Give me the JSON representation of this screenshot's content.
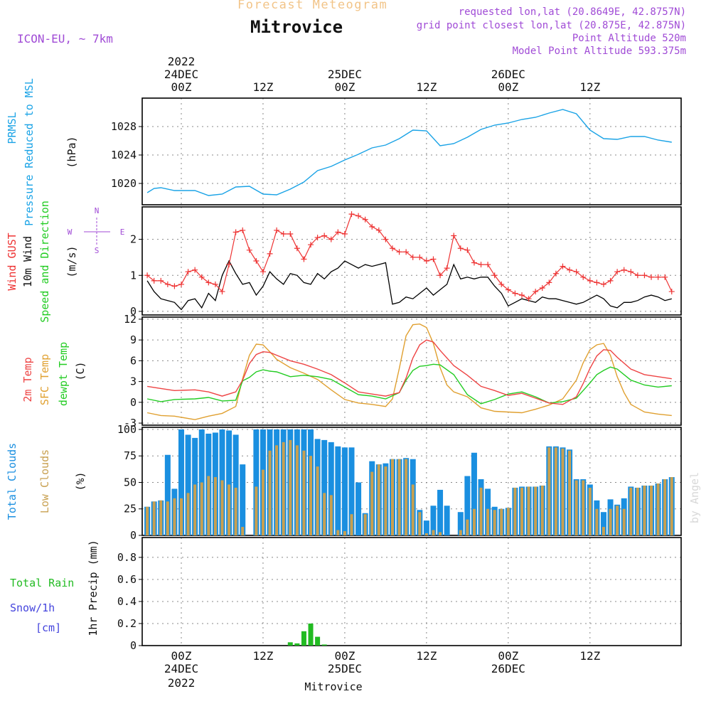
{
  "header": {
    "subtitle": "Forecast Meteogram",
    "title": "Mitrovice",
    "model": "ICON-EU, ~ 7km",
    "requested": "requested lon,lat (20.8649E, 42.8757N)",
    "grid_point": "grid point closest lon,lat (20.875E, 42.875N)",
    "point_altitude": "Point Altitude 520m",
    "model_altitude": "Model Point Altitude 593.375m",
    "bottom_label": "Mitrovice",
    "watermark": "by Angel"
  },
  "time_axis": {
    "top_year": "2022",
    "top_dates": [
      "24DEC",
      "25DEC",
      "26DEC"
    ],
    "hour_labels": [
      "00Z",
      "12Z",
      "00Z",
      "12Z",
      "00Z",
      "12Z"
    ],
    "bottom_dates": [
      "24DEC",
      "25DEC",
      "26DEC"
    ],
    "bottom_year": "2022"
  },
  "compass": {
    "n": "N",
    "s": "S",
    "w": "W",
    "e": "E"
  },
  "colors": {
    "pressure": "#1aa3e6",
    "gust": "#ee3333",
    "wind": "#000000",
    "temp": "#ee4444",
    "sfc": "#e0a030",
    "dewpt": "#22cc22",
    "cloud_total": "#1a8fe0",
    "cloud_low": "#c8a050",
    "rain": "#22bb22",
    "snow": "#4444dd",
    "header_orange": "#f2c488",
    "header_purple": "#a04bd6"
  },
  "chart_data": [
    {
      "type": "line",
      "id": "pressure",
      "title": "PRMSL Pressure Reduced to MSL",
      "label_lines": [
        "PRMSL",
        "Pressure Reduced to MSL"
      ],
      "unit": "(hPa)",
      "x_unit": "hours from 24DEC 00Z",
      "ylim": [
        1017,
        1032
      ],
      "yticks": [
        1020,
        1024,
        1028
      ],
      "series": [
        {
          "name": "PRMSL",
          "x": [
            -5,
            -4,
            -3,
            -1,
            2,
            4,
            6,
            8,
            10,
            12,
            14,
            16,
            18,
            20,
            22,
            24,
            26,
            28,
            30,
            32,
            34,
            36,
            38,
            40,
            42,
            44,
            46,
            48,
            50,
            52,
            54,
            56,
            58,
            60,
            62,
            64,
            66,
            68,
            70,
            72
          ],
          "values": [
            1018.7,
            1019.3,
            1019.4,
            1019.0,
            1019.0,
            1018.3,
            1018.5,
            1019.5,
            1019.6,
            1018.5,
            1018.4,
            1019.2,
            1020.2,
            1021.8,
            1022.4,
            1023.3,
            1024.1,
            1025.0,
            1025.4,
            1026.3,
            1027.5,
            1027.4,
            1025.3,
            1025.6,
            1026.5,
            1027.6,
            1028.2,
            1028.5,
            1029.0,
            1029.3,
            1029.9,
            1030.4,
            1029.8,
            1027.5,
            1026.3,
            1026.2,
            1026.6,
            1026.6,
            1026.1,
            1025.8
          ]
        }
      ]
    },
    {
      "type": "line",
      "id": "wind",
      "title": "Wind GUST / 10m Wind Speed and Direction",
      "label_lines": [
        "Wind GUST",
        "10m Wind",
        "Speed and Direction"
      ],
      "unit": "(m/s)",
      "x_unit": "hours from 24DEC 00Z",
      "ylim": [
        -0.1,
        2.9
      ],
      "yticks": [
        0,
        1,
        2
      ],
      "series": [
        {
          "name": "Wind GUST",
          "x": [
            -5,
            -4,
            -3,
            -2,
            -1,
            0,
            1,
            2,
            3,
            4,
            5,
            6,
            7,
            8,
            9,
            10,
            11,
            12,
            13,
            14,
            15,
            16,
            17,
            18,
            19,
            20,
            21,
            22,
            23,
            24,
            25,
            26,
            27,
            28,
            29,
            30,
            31,
            32,
            33,
            34,
            35,
            36,
            37,
            38,
            39,
            40,
            41,
            42,
            43,
            44,
            45,
            46,
            47,
            48,
            49,
            50,
            51,
            52,
            53,
            54,
            55,
            56,
            57,
            58,
            59,
            60,
            61,
            62,
            63,
            64,
            65,
            66,
            67,
            68,
            69,
            70,
            71,
            72
          ],
          "values": [
            1.0,
            0.85,
            0.85,
            0.75,
            0.7,
            0.75,
            1.1,
            1.15,
            0.95,
            0.8,
            0.75,
            0.55,
            1.3,
            2.2,
            2.25,
            1.7,
            1.4,
            1.1,
            1.6,
            2.25,
            2.15,
            2.15,
            1.75,
            1.45,
            1.85,
            2.05,
            2.1,
            2.0,
            2.2,
            2.15,
            2.7,
            2.65,
            2.55,
            2.35,
            2.25,
            2.0,
            1.75,
            1.65,
            1.65,
            1.5,
            1.5,
            1.4,
            1.45,
            1.0,
            1.2,
            2.1,
            1.75,
            1.7,
            1.35,
            1.3,
            1.3,
            1.0,
            0.75,
            0.6,
            0.5,
            0.45,
            0.35,
            0.55,
            0.65,
            0.8,
            1.05,
            1.25,
            1.15,
            1.1,
            0.95,
            0.85,
            0.8,
            0.75,
            0.85,
            1.1,
            1.15,
            1.1,
            1.0,
            1.0,
            0.95,
            0.95,
            0.95,
            0.55
          ]
        },
        {
          "name": "10m Wind",
          "x": [
            -5,
            -4,
            -3,
            -2,
            -1,
            0,
            1,
            2,
            3,
            4,
            5,
            6,
            7,
            8,
            9,
            10,
            11,
            12,
            13,
            14,
            15,
            16,
            17,
            18,
            19,
            20,
            21,
            22,
            23,
            24,
            25,
            26,
            27,
            28,
            29,
            30,
            31,
            32,
            33,
            34,
            35,
            36,
            37,
            38,
            39,
            40,
            41,
            42,
            43,
            44,
            45,
            46,
            47,
            48,
            49,
            50,
            51,
            52,
            53,
            54,
            55,
            56,
            57,
            58,
            59,
            60,
            61,
            62,
            63,
            64,
            65,
            66,
            67,
            68,
            69,
            70,
            71,
            72
          ],
          "values": [
            0.85,
            0.55,
            0.35,
            0.3,
            0.25,
            0.05,
            0.3,
            0.35,
            0.1,
            0.5,
            0.3,
            1.0,
            1.4,
            1.05,
            0.75,
            0.8,
            0.45,
            0.7,
            1.1,
            0.9,
            0.75,
            1.05,
            1.0,
            0.8,
            0.75,
            1.05,
            0.9,
            1.1,
            1.2,
            1.4,
            1.3,
            1.2,
            1.3,
            1.25,
            1.3,
            1.35,
            0.2,
            0.25,
            0.4,
            0.35,
            0.5,
            0.65,
            0.45,
            0.6,
            0.75,
            1.3,
            0.9,
            0.95,
            0.9,
            0.95,
            0.95,
            0.7,
            0.5,
            0.15,
            0.25,
            0.35,
            0.3,
            0.25,
            0.4,
            0.35,
            0.35,
            0.3,
            0.25,
            0.2,
            0.25,
            0.35,
            0.45,
            0.35,
            0.15,
            0.1,
            0.25,
            0.25,
            0.3,
            0.4,
            0.45,
            0.4,
            0.3,
            0.35
          ]
        }
      ]
    },
    {
      "type": "line",
      "id": "temperature",
      "title": "2m Temp / SFC Temp / dewpt Temp",
      "label_lines": [
        "2m Temp",
        "SFC Temp",
        "dewpt Temp"
      ],
      "unit": "(C)",
      "x_unit": "hours from 24DEC 00Z",
      "ylim": [
        -3.3,
        12.3
      ],
      "yticks": [
        -3,
        0,
        3,
        6,
        9,
        12
      ],
      "series": [
        {
          "name": "2m Temp",
          "x": [
            -5,
            -3,
            -1,
            2,
            4,
            6,
            8,
            9,
            10,
            11,
            12,
            13,
            14,
            16,
            18,
            20,
            22,
            24,
            26,
            28,
            30,
            32,
            33,
            34,
            35,
            36,
            37,
            38,
            40,
            42,
            44,
            46,
            48,
            50,
            52,
            54,
            56,
            58,
            59,
            60,
            61,
            62,
            63,
            64,
            66,
            68,
            70,
            72
          ],
          "values": [
            2.3,
            2.0,
            1.7,
            1.8,
            1.5,
            0.9,
            1.5,
            3.2,
            5.6,
            6.9,
            7.3,
            7.2,
            6.8,
            6.0,
            5.5,
            4.8,
            4.0,
            2.8,
            1.5,
            1.2,
            0.9,
            1.4,
            3.5,
            6.4,
            8.3,
            9.0,
            8.7,
            7.5,
            5.3,
            3.9,
            2.3,
            1.7,
            1.0,
            1.3,
            0.6,
            -0.1,
            -0.3,
            0.8,
            2.7,
            4.9,
            6.7,
            7.6,
            7.5,
            6.5,
            4.8,
            4.0,
            3.7,
            3.4
          ]
        },
        {
          "name": "SFC Temp",
          "x": [
            -5,
            -3,
            -1,
            2,
            4,
            6,
            8,
            9,
            10,
            11,
            12,
            13,
            14,
            16,
            18,
            20,
            22,
            24,
            26,
            28,
            30,
            31,
            32,
            33,
            34,
            35,
            36,
            37,
            38,
            39,
            40,
            42,
            44,
            46,
            48,
            50,
            52,
            54,
            56,
            58,
            59,
            60,
            61,
            62,
            63,
            64,
            65,
            66,
            68,
            70,
            72
          ],
          "values": [
            -1.5,
            -1.9,
            -2.0,
            -2.5,
            -2.0,
            -1.6,
            -0.6,
            3.4,
            6.8,
            8.4,
            8.3,
            7.3,
            6.2,
            5.0,
            4.2,
            3.3,
            1.8,
            0.4,
            -0.1,
            -0.3,
            -0.6,
            0.5,
            4.9,
            9.6,
            11.2,
            11.3,
            10.8,
            8.5,
            5.0,
            2.5,
            1.5,
            0.8,
            -0.8,
            -1.3,
            -1.4,
            -1.5,
            -1.0,
            -0.4,
            0.5,
            3.2,
            5.7,
            7.6,
            8.3,
            8.5,
            6.8,
            3.7,
            1.4,
            -0.3,
            -1.4,
            -1.7,
            -1.9
          ]
        },
        {
          "name": "dewpt Temp",
          "x": [
            -5,
            -3,
            -1,
            2,
            4,
            6,
            8,
            9,
            10,
            11,
            12,
            13,
            14,
            16,
            18,
            20,
            22,
            24,
            26,
            28,
            30,
            32,
            33,
            34,
            35,
            36,
            37,
            38,
            40,
            42,
            44,
            46,
            48,
            50,
            52,
            54,
            56,
            58,
            59,
            60,
            61,
            62,
            63,
            64,
            66,
            68,
            70,
            72
          ],
          "values": [
            0.5,
            0.1,
            0.4,
            0.5,
            0.7,
            0.2,
            0.3,
            3.1,
            3.6,
            4.4,
            4.7,
            4.5,
            4.4,
            3.7,
            3.9,
            3.7,
            3.3,
            2.2,
            1.1,
            0.9,
            0.5,
            1.4,
            3.2,
            4.6,
            5.2,
            5.3,
            5.5,
            5.4,
            4.0,
            1.1,
            -0.2,
            0.4,
            1.2,
            1.5,
            0.8,
            -0.1,
            0.1,
            0.6,
            1.7,
            2.8,
            4.0,
            4.6,
            5.1,
            4.8,
            3.2,
            2.5,
            2.2,
            2.4
          ]
        }
      ]
    },
    {
      "type": "bar",
      "id": "clouds",
      "title": "Total Clouds / Low Clouds",
      "label_lines": [
        "Total Clouds",
        "Low Clouds"
      ],
      "unit": "(%)",
      "x_unit": "hours from 24DEC 00Z",
      "ylim": [
        0,
        102
      ],
      "yticks": [
        0,
        25,
        50,
        75,
        100
      ],
      "x": [
        -5,
        -4,
        -3,
        -2,
        -1,
        0,
        1,
        2,
        3,
        4,
        5,
        6,
        7,
        8,
        9,
        10,
        11,
        12,
        13,
        14,
        15,
        16,
        17,
        18,
        19,
        20,
        21,
        22,
        23,
        24,
        25,
        26,
        27,
        28,
        29,
        30,
        31,
        32,
        33,
        34,
        35,
        36,
        37,
        38,
        39,
        40,
        41,
        42,
        43,
        44,
        45,
        46,
        47,
        48,
        49,
        50,
        51,
        52,
        53,
        54,
        55,
        56,
        57,
        58,
        59,
        60,
        61,
        62,
        63,
        64,
        65,
        66,
        67,
        68,
        69,
        70,
        71,
        72
      ],
      "series": [
        {
          "name": "Total Clouds",
          "values": [
            27,
            32,
            33,
            76,
            44,
            100,
            95,
            92,
            100,
            96,
            97,
            100,
            99,
            95,
            67,
            0,
            100,
            100,
            100,
            100,
            100,
            100,
            100,
            100,
            100,
            91,
            90,
            88,
            84,
            83,
            83,
            50,
            21,
            70,
            67,
            68,
            72,
            72,
            73,
            72,
            24,
            14,
            28,
            43,
            28,
            0,
            22,
            56,
            78,
            53,
            44,
            27,
            25,
            26,
            45,
            46,
            46,
            46,
            47,
            84,
            84,
            83,
            81,
            53,
            53,
            48,
            33,
            22,
            34,
            29,
            35,
            46,
            45,
            47,
            47,
            49,
            53,
            55
          ]
        },
        {
          "name": "Low Clouds",
          "values": [
            27,
            32,
            33,
            32,
            35,
            35,
            40,
            48,
            50,
            56,
            55,
            52,
            48,
            45,
            8,
            0,
            46,
            62,
            80,
            85,
            88,
            90,
            85,
            80,
            75,
            65,
            40,
            38,
            5,
            4,
            20,
            0,
            20,
            60,
            67,
            65,
            72,
            72,
            72,
            48,
            22,
            2,
            5,
            3,
            0,
            0,
            5,
            15,
            25,
            45,
            25,
            24,
            25,
            26,
            45,
            45,
            46,
            46,
            47,
            83,
            83,
            82,
            80,
            52,
            52,
            45,
            25,
            8,
            25,
            28,
            25,
            45,
            45,
            47,
            47,
            49,
            53,
            55
          ]
        }
      ]
    },
    {
      "type": "bar",
      "id": "precip",
      "title": "1hr Precip (mm)",
      "label_lines": [
        "Total  Rain",
        "Snow/1h",
        "[cm]"
      ],
      "unit": "1hr Precip (mm)",
      "x_unit": "hours from 24DEC 00Z",
      "ylim": [
        0,
        0.98
      ],
      "yticks": [
        0,
        0.2,
        0.4,
        0.6,
        0.8
      ],
      "x": [
        16,
        17,
        18,
        19,
        20,
        21
      ],
      "series": [
        {
          "name": "Total Rain",
          "values": [
            0.03,
            0.02,
            0.13,
            0.2,
            0.08,
            0.01
          ]
        },
        {
          "name": "Snow",
          "values": [
            0,
            0,
            0,
            0,
            0,
            0
          ]
        }
      ]
    }
  ]
}
